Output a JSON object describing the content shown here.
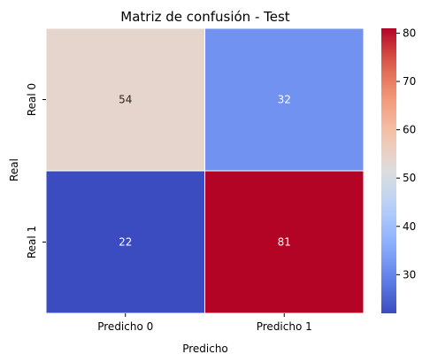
{
  "chart_data": {
    "type": "heatmap",
    "title": "Matriz de confusión - Test",
    "xlabel": "Predicho",
    "ylabel": "Real",
    "x_categories": [
      "Predicho 0",
      "Predicho 1"
    ],
    "y_categories": [
      "Real 0",
      "Real 1"
    ],
    "values": [
      [
        54,
        32
      ],
      [
        22,
        81
      ]
    ],
    "colormap": "coolwarm",
    "colorbar": {
      "vmin": 22,
      "vmax": 81,
      "ticks": [
        "30",
        "40",
        "50",
        "60",
        "70",
        "80"
      ]
    },
    "annotations": true,
    "grid": false
  }
}
